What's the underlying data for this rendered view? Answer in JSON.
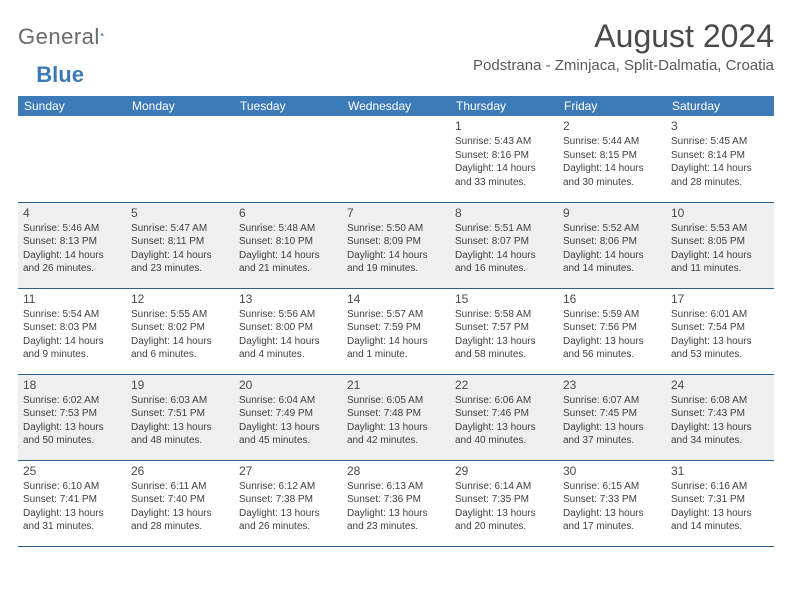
{
  "logo": {
    "text_gray": "General",
    "text_blue": "Blue"
  },
  "header": {
    "month_title": "August 2024",
    "location": "Podstrana - Zminjaca, Split-Dalmatia, Croatia"
  },
  "colors": {
    "header_bg": "#3d7bb8",
    "header_text": "#ffffff",
    "row_alt_bg": "#efefef",
    "border": "#2f5e8a",
    "text": "#3a3a3a"
  },
  "day_labels": [
    "Sunday",
    "Monday",
    "Tuesday",
    "Wednesday",
    "Thursday",
    "Friday",
    "Saturday"
  ],
  "weeks": [
    [
      null,
      null,
      null,
      null,
      {
        "n": "1",
        "sr": "5:43 AM",
        "ss": "8:16 PM",
        "dl": "14 hours and 33 minutes."
      },
      {
        "n": "2",
        "sr": "5:44 AM",
        "ss": "8:15 PM",
        "dl": "14 hours and 30 minutes."
      },
      {
        "n": "3",
        "sr": "5:45 AM",
        "ss": "8:14 PM",
        "dl": "14 hours and 28 minutes."
      }
    ],
    [
      {
        "n": "4",
        "sr": "5:46 AM",
        "ss": "8:13 PM",
        "dl": "14 hours and 26 minutes."
      },
      {
        "n": "5",
        "sr": "5:47 AM",
        "ss": "8:11 PM",
        "dl": "14 hours and 23 minutes."
      },
      {
        "n": "6",
        "sr": "5:48 AM",
        "ss": "8:10 PM",
        "dl": "14 hours and 21 minutes."
      },
      {
        "n": "7",
        "sr": "5:50 AM",
        "ss": "8:09 PM",
        "dl": "14 hours and 19 minutes."
      },
      {
        "n": "8",
        "sr": "5:51 AM",
        "ss": "8:07 PM",
        "dl": "14 hours and 16 minutes."
      },
      {
        "n": "9",
        "sr": "5:52 AM",
        "ss": "8:06 PM",
        "dl": "14 hours and 14 minutes."
      },
      {
        "n": "10",
        "sr": "5:53 AM",
        "ss": "8:05 PM",
        "dl": "14 hours and 11 minutes."
      }
    ],
    [
      {
        "n": "11",
        "sr": "5:54 AM",
        "ss": "8:03 PM",
        "dl": "14 hours and 9 minutes."
      },
      {
        "n": "12",
        "sr": "5:55 AM",
        "ss": "8:02 PM",
        "dl": "14 hours and 6 minutes."
      },
      {
        "n": "13",
        "sr": "5:56 AM",
        "ss": "8:00 PM",
        "dl": "14 hours and 4 minutes."
      },
      {
        "n": "14",
        "sr": "5:57 AM",
        "ss": "7:59 PM",
        "dl": "14 hours and 1 minute."
      },
      {
        "n": "15",
        "sr": "5:58 AM",
        "ss": "7:57 PM",
        "dl": "13 hours and 58 minutes."
      },
      {
        "n": "16",
        "sr": "5:59 AM",
        "ss": "7:56 PM",
        "dl": "13 hours and 56 minutes."
      },
      {
        "n": "17",
        "sr": "6:01 AM",
        "ss": "7:54 PM",
        "dl": "13 hours and 53 minutes."
      }
    ],
    [
      {
        "n": "18",
        "sr": "6:02 AM",
        "ss": "7:53 PM",
        "dl": "13 hours and 50 minutes."
      },
      {
        "n": "19",
        "sr": "6:03 AM",
        "ss": "7:51 PM",
        "dl": "13 hours and 48 minutes."
      },
      {
        "n": "20",
        "sr": "6:04 AM",
        "ss": "7:49 PM",
        "dl": "13 hours and 45 minutes."
      },
      {
        "n": "21",
        "sr": "6:05 AM",
        "ss": "7:48 PM",
        "dl": "13 hours and 42 minutes."
      },
      {
        "n": "22",
        "sr": "6:06 AM",
        "ss": "7:46 PM",
        "dl": "13 hours and 40 minutes."
      },
      {
        "n": "23",
        "sr": "6:07 AM",
        "ss": "7:45 PM",
        "dl": "13 hours and 37 minutes."
      },
      {
        "n": "24",
        "sr": "6:08 AM",
        "ss": "7:43 PM",
        "dl": "13 hours and 34 minutes."
      }
    ],
    [
      {
        "n": "25",
        "sr": "6:10 AM",
        "ss": "7:41 PM",
        "dl": "13 hours and 31 minutes."
      },
      {
        "n": "26",
        "sr": "6:11 AM",
        "ss": "7:40 PM",
        "dl": "13 hours and 28 minutes."
      },
      {
        "n": "27",
        "sr": "6:12 AM",
        "ss": "7:38 PM",
        "dl": "13 hours and 26 minutes."
      },
      {
        "n": "28",
        "sr": "6:13 AM",
        "ss": "7:36 PM",
        "dl": "13 hours and 23 minutes."
      },
      {
        "n": "29",
        "sr": "6:14 AM",
        "ss": "7:35 PM",
        "dl": "13 hours and 20 minutes."
      },
      {
        "n": "30",
        "sr": "6:15 AM",
        "ss": "7:33 PM",
        "dl": "13 hours and 17 minutes."
      },
      {
        "n": "31",
        "sr": "6:16 AM",
        "ss": "7:31 PM",
        "dl": "13 hours and 14 minutes."
      }
    ]
  ],
  "labels": {
    "sunrise": "Sunrise:",
    "sunset": "Sunset:",
    "daylight": "Daylight:"
  }
}
